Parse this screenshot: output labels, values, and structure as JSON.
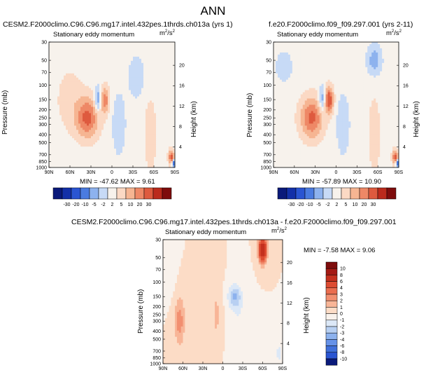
{
  "page_title": "ANN",
  "colors": {
    "c_n30": "#0a1a7a",
    "c_n20": "#1330a8",
    "c_n10": "#2a55d2",
    "c_n5": "#4a7be0",
    "c_n2": "#8db2ee",
    "c_n1": "#c7daf6",
    "c_0": "#f7f2ec",
    "c_p1": "#fbd9c4",
    "c_p2": "#f6b592",
    "c_p5": "#ee8866",
    "c_p10": "#de5a3e",
    "c_p20": "#bb2a1c",
    "c_p30": "#7e0c0c"
  },
  "chart_data": [
    {
      "type": "heatmap",
      "id": "left",
      "title": "CESM2.F2000climo.C96.C96.mg17.intel.432pes.1thrds.ch013a (yrs 1)",
      "subtitle": "Stationary eddy momentum",
      "units": "m2/s2",
      "ylabel": "Pressure (mb)",
      "ylabel_right": "Height (km)",
      "x_ticks": [
        "90N",
        "60N",
        "30N",
        "0",
        "30S",
        "60S",
        "90S"
      ],
      "y_ticks": [
        "30",
        "50",
        "70",
        "100",
        "150",
        "200",
        "250",
        "300",
        "400",
        "500",
        "700",
        "850",
        "1000"
      ],
      "y_ticks_right": [
        "20",
        "16",
        "12",
        "8",
        "4"
      ],
      "min_max_text": "MIN = -47.62  MAX = 9.61",
      "min": -47.62,
      "max": 9.61,
      "blobs": [
        {
          "lat": 35,
          "p": 250,
          "dlat": 16,
          "dp": 0.55,
          "v": 5.5
        },
        {
          "lat": 10,
          "p": 150,
          "dlat": 6,
          "dp": 0.35,
          "v": 4.5
        },
        {
          "lat": 20,
          "p": 150,
          "dlat": 5,
          "dp": 0.35,
          "v": -4.0
        },
        {
          "lat": 60,
          "p": 150,
          "dlat": 20,
          "dp": 0.9,
          "v": 1.2
        },
        {
          "lat": -10,
          "p": 300,
          "dlat": 10,
          "dp": 0.9,
          "v": -1.5
        },
        {
          "lat": -35,
          "p": 80,
          "dlat": 12,
          "dp": 0.6,
          "v": -1.5
        },
        {
          "lat": -55,
          "p": 400,
          "dlat": 10,
          "dp": 1.2,
          "v": 1.2
        },
        {
          "lat": -85,
          "p": 750,
          "dlat": 4,
          "dp": 0.2,
          "v": 6.0
        },
        {
          "lat": -88,
          "p": 900,
          "dlat": 2,
          "dp": 0.1,
          "v": -9.0
        }
      ]
    },
    {
      "type": "heatmap",
      "id": "right",
      "title": "f.e20.F2000climo.f09_f09.297.001 (yrs 2-11)",
      "subtitle": "Stationary eddy momentum",
      "units": "m2/s2",
      "ylabel": "Pressure (mb)",
      "ylabel_right": "Height (km)",
      "x_ticks": [
        "90N",
        "60N",
        "30N",
        "0",
        "30S",
        "60S",
        "90S"
      ],
      "y_ticks": [
        "30",
        "50",
        "70",
        "100",
        "150",
        "200",
        "250",
        "300",
        "400",
        "500",
        "700",
        "850",
        "1000"
      ],
      "y_ticks_right": [
        "20",
        "16",
        "12",
        "8",
        "4"
      ],
      "min_max_text": "MIN = -57.89  MAX = 10.90",
      "min": -57.89,
      "max": 10.9,
      "blobs": [
        {
          "lat": 35,
          "p": 250,
          "dlat": 16,
          "dp": 0.55,
          "v": 5.5
        },
        {
          "lat": 10,
          "p": 150,
          "dlat": 6,
          "dp": 0.35,
          "v": 6.5
        },
        {
          "lat": 20,
          "p": 150,
          "dlat": 5,
          "dp": 0.35,
          "v": -3.5
        },
        {
          "lat": 75,
          "p": 60,
          "dlat": 14,
          "dp": 0.5,
          "v": -1.2
        },
        {
          "lat": -10,
          "p": 300,
          "dlat": 10,
          "dp": 0.9,
          "v": -1.5
        },
        {
          "lat": -55,
          "p": 50,
          "dlat": 10,
          "dp": 0.4,
          "v": -3.0
        },
        {
          "lat": -55,
          "p": 400,
          "dlat": 10,
          "dp": 1.2,
          "v": 1.2
        },
        {
          "lat": -85,
          "p": 750,
          "dlat": 4,
          "dp": 0.2,
          "v": 6.0
        },
        {
          "lat": -88,
          "p": 900,
          "dlat": 2,
          "dp": 0.1,
          "v": -9.0
        }
      ]
    },
    {
      "type": "heatmap",
      "id": "diff",
      "title": "CESM2.F2000climo.C96.C96.mg17.intel.432pes.1thrds.ch013a - f.e20.F2000climo.f09_f09.297.001",
      "subtitle": "Stationary eddy momentum",
      "units": "m2/s2",
      "ylabel": "Pressure (mb)",
      "ylabel_right": "Height (km)",
      "x_ticks": [
        "90N",
        "60N",
        "30N",
        "0",
        "30S",
        "60S",
        "90S"
      ],
      "y_ticks": [
        "30",
        "50",
        "70",
        "100",
        "150",
        "200",
        "250",
        "300",
        "400",
        "500",
        "700",
        "850",
        "1000"
      ],
      "y_ticks_right": [
        "20",
        "16",
        "12",
        "8",
        "4"
      ],
      "min_max_text": "MIN = -7.58  MAX =  9.06",
      "min": -7.58,
      "max": 9.06,
      "blobs": [
        {
          "lat": -60,
          "p": 40,
          "dlat": 6,
          "dp": 0.35,
          "v": 8.5
        },
        {
          "lat": 65,
          "p": 300,
          "dlat": 8,
          "dp": 0.7,
          "v": 2.5
        },
        {
          "lat": -18,
          "p": 150,
          "dlat": 10,
          "dp": 0.35,
          "v": -3.0
        },
        {
          "lat": -25,
          "p": 400,
          "dlat": 14,
          "dp": 0.9,
          "v": -1.0
        },
        {
          "lat": 10,
          "p": 250,
          "dlat": 8,
          "dp": 0.9,
          "v": 1.2
        },
        {
          "lat": 80,
          "p": 70,
          "dlat": 8,
          "dp": 0.6,
          "v": -1.0
        },
        {
          "lat": -85,
          "p": 750,
          "dlat": 5,
          "dp": 0.3,
          "v": -1.5
        }
      ]
    }
  ],
  "colorbar_top": {
    "labels": [
      "-30",
      "-20",
      "-10",
      "-5",
      "-2",
      "2",
      "5",
      "10",
      "20",
      "30"
    ],
    "colors": [
      "#0a1a7a",
      "#1330a8",
      "#2a55d2",
      "#4a7be0",
      "#8db2ee",
      "#c7daf6",
      "#f7f2ec",
      "#fbd9c4",
      "#f6b592",
      "#ee8866",
      "#de5a3e",
      "#bb2a1c",
      "#7e0c0c"
    ]
  },
  "colorbar_diff": {
    "labels": [
      "10",
      "8",
      "6",
      "4",
      "3",
      "2",
      "1",
      "0",
      "-1",
      "-2",
      "-3",
      "-4",
      "-6",
      "-8",
      "-10"
    ],
    "colors": [
      "#7e0c0c",
      "#a41a14",
      "#c4301e",
      "#dd4c32",
      "#ea6d4f",
      "#f28f70",
      "#f8b597",
      "#fcdcc6",
      "#f9f2ec",
      "#dce8f7",
      "#b8d0f2",
      "#8db2ee",
      "#6692e8",
      "#4070da",
      "#2a55d2",
      "#0a1a7a"
    ]
  }
}
